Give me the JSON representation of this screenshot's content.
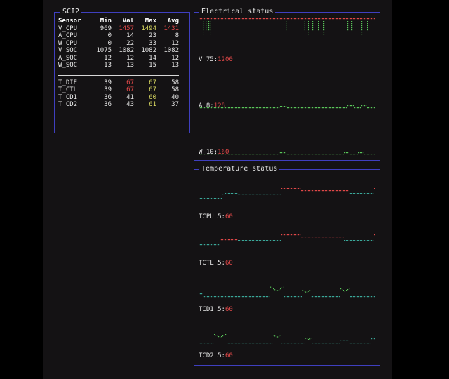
{
  "sci": {
    "title": "SCI2",
    "headers": [
      "Sensor",
      "Min",
      "Val",
      "Max",
      "Avg"
    ],
    "power_rows": [
      {
        "name": "V_CPU",
        "min": "969",
        "val": "1457",
        "max": "1494",
        "avg": "1431",
        "val_color": "red",
        "max_color": "yellow",
        "avg_color": "red"
      },
      {
        "name": "A_CPU",
        "min": "0",
        "val": "14",
        "max": "23",
        "avg": "8"
      },
      {
        "name": "W_CPU",
        "min": "0",
        "val": "22",
        "max": "33",
        "avg": "12"
      },
      {
        "name": "V_SOC",
        "min": "1075",
        "val": "1082",
        "max": "1082",
        "avg": "1082"
      },
      {
        "name": "A_SOC",
        "min": "12",
        "val": "12",
        "max": "14",
        "avg": "12"
      },
      {
        "name": "W_SOC",
        "min": "13",
        "val": "13",
        "max": "15",
        "avg": "13"
      }
    ],
    "temp_rows": [
      {
        "name": "T_DIE",
        "min": "39",
        "val": "67",
        "max": "67",
        "avg": "58",
        "val_color": "red",
        "max_color": "yellow"
      },
      {
        "name": "T_CTL",
        "min": "39",
        "val": "67",
        "max": "67",
        "avg": "58",
        "val_color": "red",
        "max_color": "yellow"
      },
      {
        "name": "T_CD1",
        "min": "36",
        "val": "41",
        "max": "60",
        "avg": "40",
        "max_color": "yellow"
      },
      {
        "name": "T_CD2",
        "min": "36",
        "val": "43",
        "max": "61",
        "avg": "37",
        "max_color": "yellow"
      }
    ]
  },
  "electrical": {
    "title": "Electrical status",
    "graphs": [
      {
        "name": "V",
        "scale": "75",
        "limit": "1200"
      },
      {
        "name": "A",
        "scale": "8",
        "limit": "128"
      },
      {
        "name": "W",
        "scale": "10",
        "limit": "160"
      }
    ]
  },
  "temperature": {
    "title": "Temperature status",
    "graphs": [
      {
        "name": "TCPU",
        "scale": "5",
        "limit": "60"
      },
      {
        "name": "TCTL",
        "scale": "5",
        "limit": "60"
      },
      {
        "name": "TCD1",
        "scale": "5",
        "limit": "60"
      },
      {
        "name": "TCD2",
        "scale": "5",
        "limit": "60"
      }
    ]
  },
  "colors": {
    "frame": "#3f3fbf",
    "green": "#5ac85a",
    "teal": "#3aa89a",
    "red": "#e04848",
    "yellow": "#d8d860"
  }
}
